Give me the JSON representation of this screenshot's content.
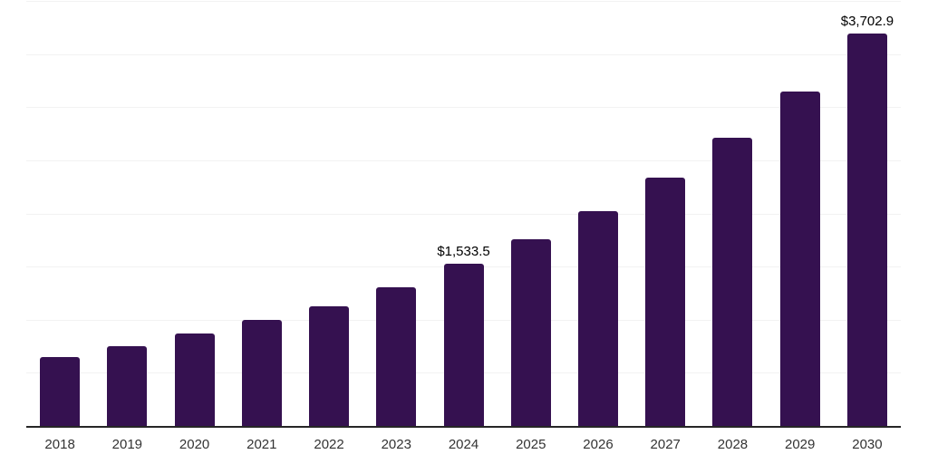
{
  "chart_data": {
    "type": "bar",
    "title": "",
    "categories": [
      "2018",
      "2019",
      "2020",
      "2021",
      "2022",
      "2023",
      "2024",
      "2025",
      "2026",
      "2027",
      "2028",
      "2029",
      "2030"
    ],
    "values": [
      660,
      760,
      875,
      1005,
      1135,
      1315,
      1533.5,
      1765,
      2030,
      2345,
      2725,
      3160,
      3702.9
    ],
    "data_labels": {
      "2024": "$1,533.5",
      "2030": "$3,702.9"
    },
    "xlabel": "",
    "ylabel": "",
    "ylim": [
      0,
      4000
    ],
    "grid": true,
    "grid_step": 500,
    "legend": false,
    "colors": {
      "bar": "#351150",
      "axis_line": "#262626",
      "gridline": "#f2f2f2",
      "tick_label": "#333333",
      "value_label": "#000000",
      "background": "#ffffff"
    }
  }
}
